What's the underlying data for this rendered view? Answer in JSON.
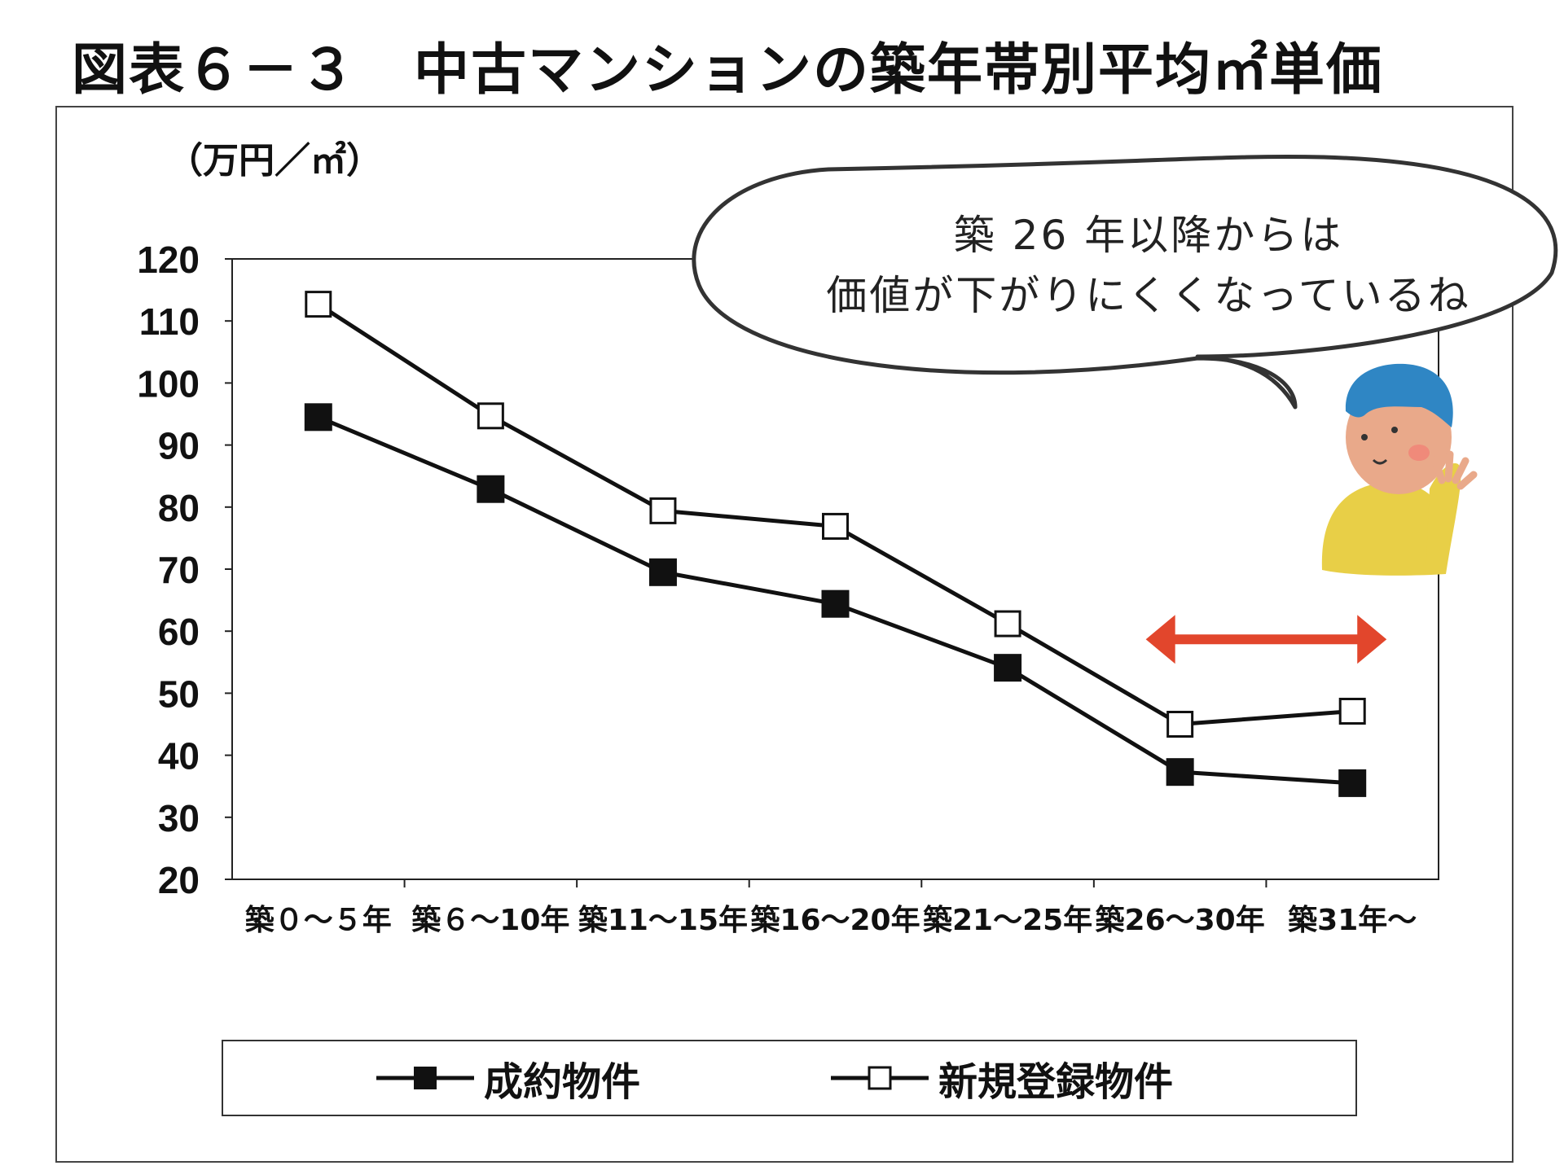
{
  "title": "図表６－３　中古マンションの築年帯別平均㎡単価",
  "unit_label": "（万円／㎡）",
  "speech_bubble": {
    "line1": "築 26 年以降からは",
    "line2": "価値が下がりにくくなっているね"
  },
  "colors": {
    "line": "#111111",
    "arrow": "#e2462c",
    "face": "#e9a98a",
    "hair": "#2f86c4",
    "shirt": "#e8cf47"
  },
  "legend": {
    "series1": "成約物件",
    "series2": "新規登録物件"
  },
  "chart_data": {
    "type": "line",
    "title": "中古マンションの築年帯別平均㎡単価",
    "ylabel": "（万円／㎡）",
    "xlabel": "",
    "categories": [
      "築０～５年",
      "築６～10年",
      "築11～15年",
      "築16～20年",
      "築21～25年",
      "築26～30年",
      "築31年～"
    ],
    "ylim": [
      20,
      120
    ],
    "yticks": [
      20,
      30,
      40,
      50,
      60,
      70,
      80,
      90,
      100,
      110,
      120
    ],
    "series": [
      {
        "name": "成約物件",
        "marker": "filled-square",
        "values": [
          94.5,
          82.9,
          69.5,
          64.4,
          54.1,
          37.3,
          35.5
        ]
      },
      {
        "name": "新規登録物件",
        "marker": "open-square",
        "values": [
          112.7,
          94.7,
          79.4,
          76.9,
          61.2,
          45.0,
          47.1
        ]
      }
    ],
    "annotation": {
      "type": "double-arrow",
      "from_category": "築26～30年",
      "to_category": "築31年～",
      "y": 60
    }
  }
}
